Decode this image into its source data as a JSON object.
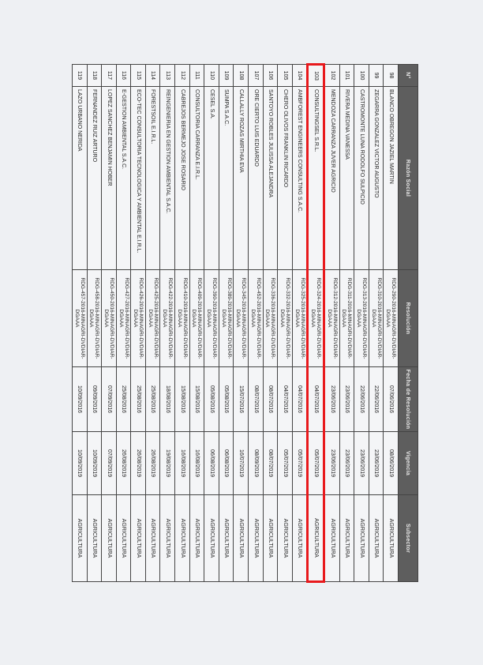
{
  "headers": {
    "no": "N°",
    "razon": "Razón Social",
    "resolucion": "Resolución",
    "fecha": "Fecha de Resolución",
    "vigencia": "Vigencia",
    "subsector": "Subsector"
  },
  "highlight_color": "#e8191c",
  "highlighted_row": "103",
  "rows": [
    {
      "no": "98",
      "razon": "BLANCO OBREGON JAZIEL MARTIN",
      "resolucion": "RDG-290-2016-MINAGRI-DVDIAR-DGAAA",
      "fecha": "07/06/2016",
      "vigencia": "08/06/2019",
      "subsector": "AGRICULTURA"
    },
    {
      "no": "99",
      "razon": "ZEGARRA GONZALEZ VICTOR AUGUSTO",
      "resolucion": "RDG-310-2016-MINAGRI-DVDIAR-DGAAA",
      "fecha": "22/06/2016",
      "vigencia": "23/06/2019",
      "subsector": "AGRICULTURA"
    },
    {
      "no": "100",
      "razon": "CASTROMONTE LUNA RODOLFO SULPICIO",
      "resolucion": "RDG-313-2016-MINAGRI-DVDIAR-DGAAA",
      "fecha": "22/06/2016",
      "vigencia": "23/06/2019",
      "subsector": "AGRICULTURA"
    },
    {
      "no": "101",
      "razon": "RIVERA MEDINA VANESSA",
      "resolucion": "RDG-311-2016-MINAGRI-DVDIAR-DGAAA",
      "fecha": "23/06/2016",
      "vigencia": "23/06/2019",
      "subsector": "AGRICULTURA"
    },
    {
      "no": "102",
      "razon": "MENDOZA CARRANZA JUVER AGRICIO",
      "resolucion": "RDG-312-2016-MINAGRI-DVDIAR-DGAAA",
      "fecha": "23/06/2016",
      "vigencia": "23/06/2019",
      "subsector": "AGRICULTURA"
    },
    {
      "no": "103",
      "razon": "CONSULTINGSEL S.R.L.",
      "resolucion": "RDG-324-2016-MINAGRI-DVDIAR-DGAAA",
      "fecha": "04/07/2016",
      "vigencia": "05/07/2019",
      "subsector": "AGRICULTURA"
    },
    {
      "no": "104",
      "razon": "AMBFOREST ENGINEERS CONSULTING S.A.C.",
      "resolucion": "RDG-325-2016-MINAGRI-DVDIAR-DGAAA",
      "fecha": "04/07/2016",
      "vigencia": "05/07/2019",
      "subsector": "AGRICULTURA"
    },
    {
      "no": "105",
      "razon": "CHERO OLIVOS FRANKLIN RICARDO",
      "resolucion": "RDG-332-2016-MINAGRI-DVDIAR-DGAAA",
      "fecha": "04/07/2016",
      "vigencia": "05/07/2019",
      "subsector": "AGRICULTURA"
    },
    {
      "no": "106",
      "razon": "SANTOYO ROBLES JULISSA ALEJANDRA",
      "resolucion": "RDG-336-2016-MINAGRI-DVDIAR-DGAAA",
      "fecha": "08/07/2016",
      "vigencia": "08/07/2019",
      "subsector": "AGRICULTURA"
    },
    {
      "no": "107",
      "razon": "ORE CIERTO LUIS EDUARDO",
      "resolucion": "RDG-452-2016-MINAGRI-DVDIAR-DGAAA",
      "fecha": "08/07/2016",
      "vigencia": "08/09/2019",
      "subsector": "AGRICULTURA"
    },
    {
      "no": "108",
      "razon": "CALLALLY ROZAS MIRTHIA EVA",
      "resolucion": "RDG-345-2016-MINAGRI-DVDIAR-DGAAA",
      "fecha": "15/07/2016",
      "vigencia": "16/07/2019",
      "subsector": "AGRICULTURA"
    },
    {
      "no": "109",
      "razon": "SUMPA S.A.C.",
      "resolucion": "RDG-389-2016-MINAGRI-DVDIAR-DGAAA",
      "fecha": "05/08/2016",
      "vigencia": "06/08/2019",
      "subsector": "AGRICULTURA"
    },
    {
      "no": "110",
      "razon": "CESEL S.A.",
      "resolucion": "RDG-390-2016-MINAGRI-DVDIAR-DGAAA",
      "fecha": "05/08/2016",
      "vigencia": "06/08/2019",
      "subsector": "AGRICULTURA"
    },
    {
      "no": "111",
      "razon": "CONSULTORIA CARRANZA E.I.R.L.",
      "resolucion": "RDG-409-2016-MINAGRI-DVDIAR-DGAAA",
      "fecha": "15/08/2016",
      "vigencia": "16/08/2019",
      "subsector": "AGRICULTURA"
    },
    {
      "no": "112",
      "razon": "CABREJOS BERMEJO JOSE ROSARIO",
      "resolucion": "RDG-410-2016-MINAGRI-DVDIAR-DGAAA",
      "fecha": "15/08/2016",
      "vigencia": "16/08/2019",
      "subsector": "AGRICULTURA"
    },
    {
      "no": "113",
      "razon": "REINGENIERIA EN GESTION AMBIENTAL S.A.C.",
      "resolucion": "RDG-422-2016-MINAGRI-DVDIAR-DGAAA",
      "fecha": "18/08/2016",
      "vigencia": "19/08/2019",
      "subsector": "AGRICULTURA"
    },
    {
      "no": "114",
      "razon": "FORESTSOIL E.I.R.L.",
      "resolucion": "RDG-425-2016-MINAGRI-DVDIAR-DGAAA",
      "fecha": "25/08/2016",
      "vigencia": "26/08/2019",
      "subsector": "AGRICULTURA"
    },
    {
      "no": "115",
      "razon": "ECO-TEC CONSULTORIA TECNOLOGICA Y AMBIENTAL E.I.R.L.",
      "resolucion": "RDG-426-2016-MINAGRI-DVDIAR-DGAAA",
      "fecha": "25/08/2016",
      "vigencia": "26/08/2019",
      "subsector": "AGRICULTURA"
    },
    {
      "no": "116",
      "razon": "E-GESTION AMBIENTAL S.A.C.",
      "resolucion": "RDG-427-2016-MINAGRI-DVDIAR-DGAAA",
      "fecha": "25/08/2016",
      "vigencia": "26/08/2019",
      "subsector": "AGRICULTURA"
    },
    {
      "no": "117",
      "razon": "LOPEZ SANCHEZ BENJAMIN HOBER",
      "resolucion": "RDG-450-2016-MINAGRI-DVDIAR-DGAAA",
      "fecha": "07/09/2016",
      "vigencia": "07/09/2019",
      "subsector": "AGRICULTURA"
    },
    {
      "no": "118",
      "razon": "FERNANDEZ RUIZ ARTURO",
      "resolucion": "RDG-458-2016-MINAGRI-DVDIAR-DGAAA",
      "fecha": "09/09/2016",
      "vigencia": "10/09/2019",
      "subsector": "AGRICULTURA"
    },
    {
      "no": "119",
      "razon": "LAZO URBANO NERIDA",
      "resolucion": "RDG-457-2016-MINAGRI-DVDIAR-DGAAA",
      "fecha": "10/09/2016",
      "vigencia": "10/09/2019",
      "subsector": "AGRICULTURA"
    }
  ]
}
